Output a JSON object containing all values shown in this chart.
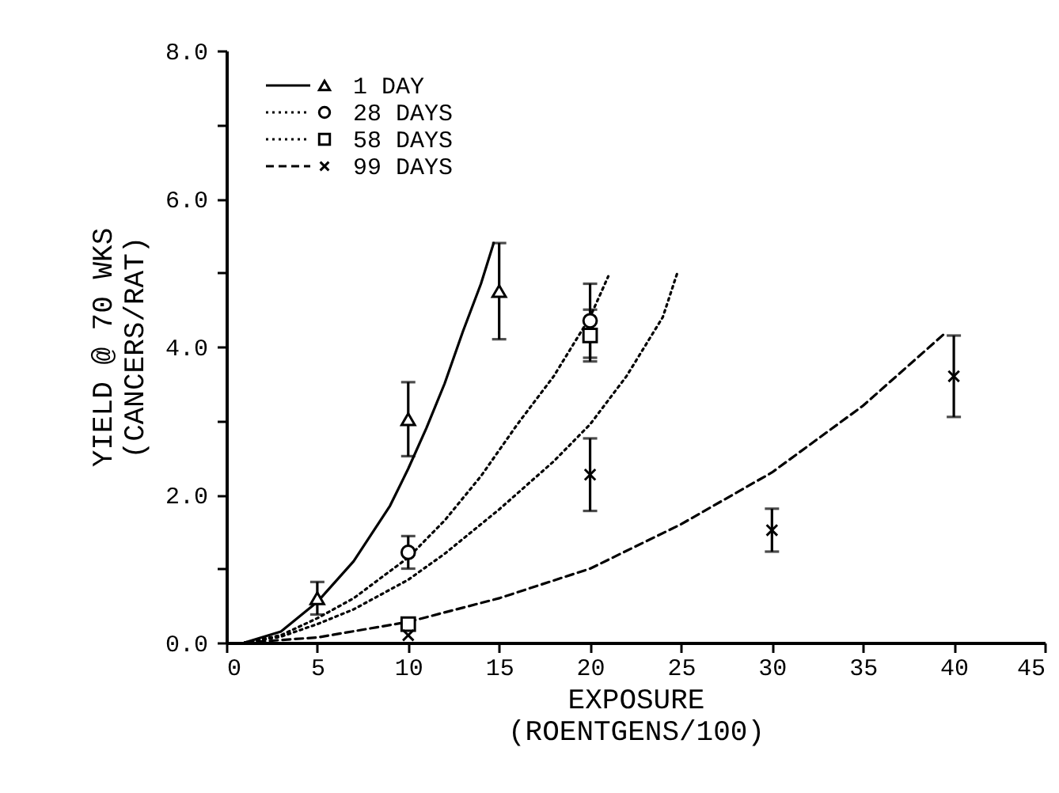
{
  "chart_data": {
    "type": "scatter",
    "xlabel": "EXPOSURE\n(ROENTGENS/100)",
    "ylabel": "YIELD @ 70 WKS\n(CANCERS/RAT)",
    "xlim": [
      0,
      45
    ],
    "xticks": [
      0,
      5,
      10,
      15,
      20,
      25,
      30,
      35,
      40,
      45
    ],
    "ylim": [
      0,
      8
    ],
    "yticks": [
      {
        "value": 0,
        "label": "0.0"
      },
      {
        "value": 1,
        "label": null
      },
      {
        "value": 2,
        "label": "2.0"
      },
      {
        "value": 3,
        "label": null
      },
      {
        "value": 4,
        "label": "4.0"
      },
      {
        "value": 5,
        "label": null
      },
      {
        "value": 6,
        "label": "6.0"
      },
      {
        "value": 7,
        "label": null
      },
      {
        "value": 8,
        "label": "8.0"
      }
    ],
    "grid": false,
    "legend": "top left",
    "series": [
      {
        "name": "1 DAY",
        "type": "scatter",
        "marker": "triangle",
        "color": "#000000",
        "x": [
          5,
          10,
          15
        ],
        "values": [
          0.6,
          3.02,
          4.75
        ],
        "errors": [
          0.22,
          0.5,
          0.65
        ]
      },
      {
        "name": "28 DAYS",
        "type": "scatter",
        "marker": "circle",
        "color": "#000000",
        "x": [
          10,
          20
        ],
        "values": [
          1.22,
          4.35
        ],
        "errors": [
          0.22,
          0.5
        ]
      },
      {
        "name": "58 DAYS",
        "type": "scatter",
        "marker": "square",
        "color": "#000000",
        "x": [
          10,
          20
        ],
        "values": [
          0.25,
          4.15
        ],
        "errors": [
          null,
          0.35
        ]
      },
      {
        "name": "99 DAYS",
        "type": "scatter",
        "marker": "cross",
        "color": "#000000",
        "x": [
          10,
          20,
          30,
          40
        ],
        "values": [
          0.1,
          2.27,
          1.52,
          3.6
        ],
        "errors": [
          null,
          0.49,
          0.29,
          0.55
        ]
      },
      {
        "type": "line",
        "line_style": "solid",
        "color": "#000000",
        "x": [
          1,
          3,
          5,
          7,
          9,
          10,
          11,
          12,
          13,
          14,
          14.7
        ],
        "values": [
          0,
          0.15,
          0.55,
          1.1,
          1.85,
          2.35,
          2.9,
          3.5,
          4.2,
          4.85,
          5.4
        ]
      },
      {
        "type": "line",
        "line_style": "dotted",
        "color": "#000000",
        "x": [
          1,
          3,
          5,
          7,
          10,
          12,
          14,
          16,
          18,
          20,
          21
        ],
        "values": [
          0,
          0.1,
          0.33,
          0.6,
          1.15,
          1.65,
          2.25,
          2.95,
          3.6,
          4.4,
          4.95
        ]
      },
      {
        "type": "line",
        "line_style": "dotted",
        "color": "#000000",
        "x": [
          1,
          3,
          5,
          7,
          10,
          12,
          15,
          18,
          20,
          22,
          24,
          24.8
        ],
        "values": [
          0,
          0.08,
          0.25,
          0.45,
          0.85,
          1.2,
          1.8,
          2.45,
          2.95,
          3.6,
          4.4,
          5.0
        ]
      },
      {
        "type": "line",
        "line_style": "dashed",
        "color": "#000000",
        "x": [
          1,
          5,
          10,
          15,
          20,
          25,
          30,
          35,
          39.6
        ],
        "values": [
          0,
          0.07,
          0.28,
          0.6,
          1.0,
          1.6,
          2.3,
          3.2,
          4.2
        ]
      }
    ]
  }
}
